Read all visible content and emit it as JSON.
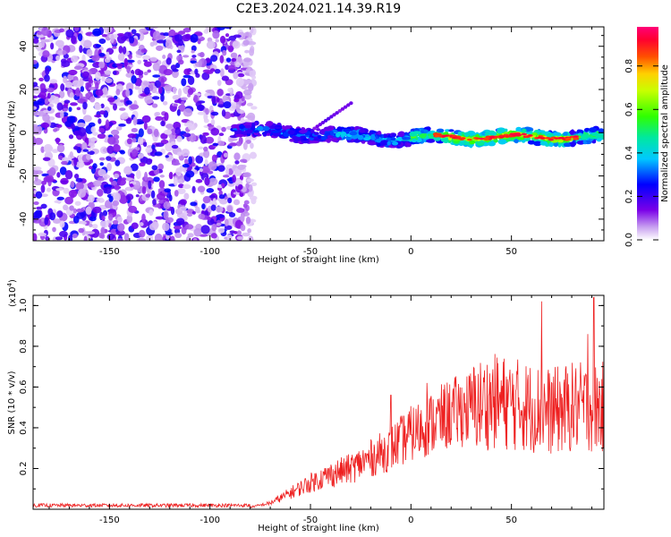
{
  "title": "C2E3.2024.021.14.39.R19",
  "chart_data": [
    {
      "type": "heatmap",
      "xlabel": "Height of straight line (km)",
      "ylabel": "Frequency (Hz)",
      "xlim": [
        -188,
        96
      ],
      "ylim": [
        -50,
        49
      ],
      "xticks": [
        -150,
        -100,
        -50,
        0,
        50
      ],
      "yticks": [
        -40,
        -20,
        0,
        20,
        40
      ],
      "colorbar": {
        "label": "Normalized spectral amplitude",
        "range": [
          0.0,
          0.98
        ],
        "ticks": [
          0.0,
          0.2,
          0.4,
          0.6,
          0.8
        ],
        "tick_labels": [
          "0.0",
          "0.2",
          "0.4",
          "0.6",
          "0.8"
        ]
      },
      "features": {
        "noise_region": {
          "x_range": [
            -188,
            -78
          ],
          "amplitude": [
            0.0,
            0.25
          ]
        },
        "signal_band": {
          "x_range": [
            -88,
            96
          ],
          "center_freq": -2,
          "width_hz": 6,
          "peak_amplitude": 0.95,
          "peak_x_range": [
            15,
            80
          ]
        }
      }
    },
    {
      "type": "line",
      "xlabel": "Height of straight line (km)",
      "ylabel": "SNR (10 * v/v)",
      "y_multiplier_label": "(x10",
      "y_multiplier_exp": "4",
      "xlim": [
        -188,
        96
      ],
      "ylim": [
        0,
        1.05
      ],
      "xticks": [
        -150,
        -100,
        -50,
        0,
        50
      ],
      "yticks": [
        0.2,
        0.4,
        0.6,
        0.8,
        1.0
      ],
      "ytick_labels": [
        "0.2",
        "0.4",
        "0.6",
        "0.8",
        "1.0"
      ],
      "color": "#ee2020",
      "envelope": {
        "x": [
          -188,
          -80,
          -70,
          -60,
          -50,
          -40,
          -30,
          -20,
          -10,
          0,
          10,
          20,
          30,
          40,
          50,
          60,
          70,
          80,
          96
        ],
        "y": [
          0.01,
          0.01,
          0.03,
          0.08,
          0.13,
          0.17,
          0.2,
          0.25,
          0.3,
          0.37,
          0.42,
          0.47,
          0.5,
          0.53,
          0.52,
          0.5,
          0.48,
          0.5,
          0.5
        ]
      },
      "spikes": [
        {
          "x": 65,
          "y": 1.02
        },
        {
          "x": 91,
          "y": 1.04
        },
        {
          "x": 88,
          "y": 0.86
        },
        {
          "x": 8,
          "y": 0.62
        },
        {
          "x": -10,
          "y": 0.56
        }
      ]
    }
  ]
}
